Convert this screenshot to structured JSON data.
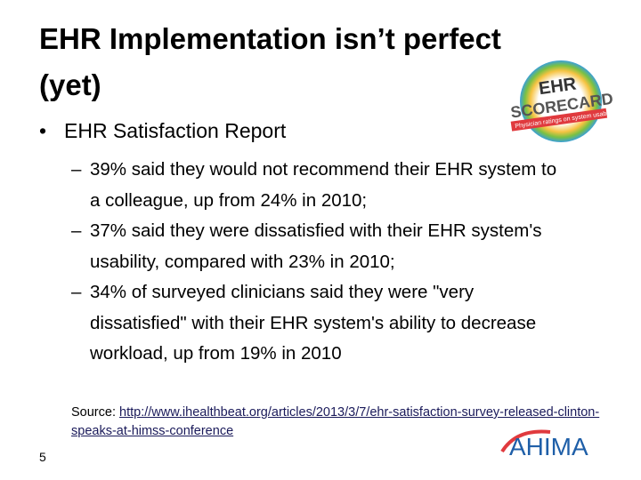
{
  "header": {
    "title": "EHR Implementation isn’t perfect (yet)"
  },
  "logo": {
    "title_top": "EHR",
    "title_bottom": "SCORECARD",
    "tagline": "Physician ratings on system usability"
  },
  "bullet": {
    "text": "EHR Satisfaction Report",
    "subbullets": [
      "39% said they would not recommend their EHR system to a colleague, up from 24% in 2010;",
      "37% said they were dissatisfied with their EHR system's usability, compared with 23% in 2010;",
      "34% of surveyed clinicians said they were \"very dissatisfied\" with their EHR system's ability to decrease workload, up from 19% in 2010"
    ]
  },
  "source": {
    "label": "Source:",
    "url": "http://www.ihealthbeat.org/articles/2013/3/7/ehr-satisfaction-survey-released-clinton-speaks-at-himss-conference"
  },
  "footer": {
    "page_number": "5",
    "brand": "AHIMA"
  }
}
